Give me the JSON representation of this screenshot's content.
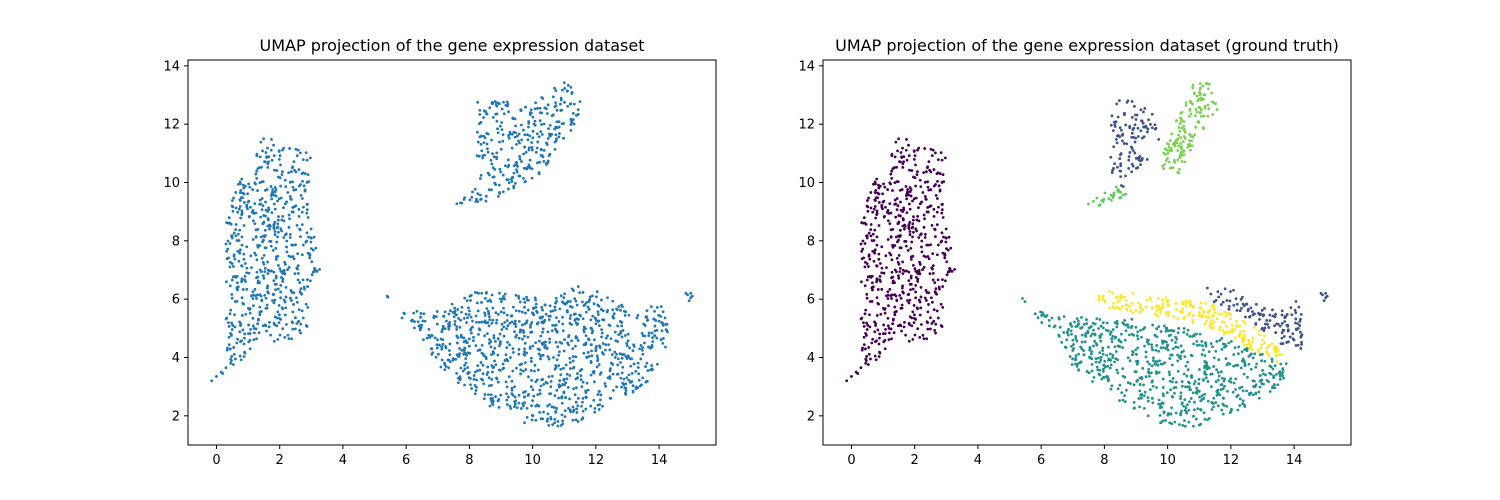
{
  "chart_data": [
    {
      "type": "scatter",
      "title": "UMAP projection of the gene expression dataset",
      "xlabel": "",
      "ylabel": "",
      "xlim": [
        -0.9,
        15.8
      ],
      "ylim": [
        1.0,
        14.2
      ],
      "xticks": [
        0,
        2,
        4,
        6,
        8,
        10,
        12,
        14
      ],
      "yticks": [
        2,
        4,
        6,
        8,
        10,
        12,
        14
      ],
      "grid": false,
      "legend": "none",
      "color": "#1f77b4",
      "clusters": [
        {
          "name": "left_band",
          "poly": [
            [
              -0.2,
              3.1
            ],
            [
              0.3,
              3.8
            ],
            [
              0.3,
              8.5
            ],
            [
              0.5,
              10.1
            ],
            [
              1.2,
              10.3
            ],
            [
              1.3,
              11.6
            ],
            [
              2.4,
              11.3
            ],
            [
              3.0,
              11.0
            ],
            [
              2.9,
              9.5
            ],
            [
              3.3,
              7.0
            ],
            [
              2.8,
              6.2
            ],
            [
              3.0,
              5.1
            ],
            [
              2.4,
              4.6
            ],
            [
              1.3,
              4.4
            ],
            [
              0.9,
              3.9
            ],
            [
              -0.2,
              3.1
            ]
          ],
          "n": 600,
          "extra": [
            [
              -0.15,
              3.2
            ],
            [
              0.0,
              3.35
            ],
            [
              0.15,
              3.5
            ],
            [
              0.3,
              3.65
            ],
            [
              0.45,
              3.8
            ],
            [
              0.6,
              3.95
            ],
            [
              0.75,
              4.05
            ],
            [
              0.9,
              4.15
            ]
          ]
        },
        {
          "name": "top_cluster",
          "poly": [
            [
              7.4,
              9.2
            ],
            [
              8.3,
              10.0
            ],
            [
              8.2,
              11.5
            ],
            [
              8.2,
              12.8
            ],
            [
              9.2,
              12.8
            ],
            [
              9.9,
              12.6
            ],
            [
              10.8,
              13.4
            ],
            [
              11.2,
              13.5
            ],
            [
              11.6,
              12.7
            ],
            [
              11.4,
              12.0
            ],
            [
              10.8,
              11.3
            ],
            [
              10.3,
              10.3
            ],
            [
              9.6,
              9.9
            ],
            [
              8.9,
              9.5
            ],
            [
              8.4,
              9.3
            ],
            [
              7.4,
              9.2
            ]
          ],
          "n": 300,
          "extra": []
        },
        {
          "name": "bottom_cluster",
          "poly": [
            [
              5.1,
              6.5
            ],
            [
              5.8,
              5.6
            ],
            [
              7.2,
              5.7
            ],
            [
              8.0,
              6.3
            ],
            [
              9.0,
              6.2
            ],
            [
              10.6,
              6.0
            ],
            [
              11.2,
              6.5
            ],
            [
              12.0,
              6.3
            ],
            [
              13.5,
              5.5
            ],
            [
              14.0,
              6.0
            ],
            [
              14.3,
              5.0
            ],
            [
              14.2,
              4.0
            ],
            [
              13.5,
              3.0
            ],
            [
              12.3,
              2.2
            ],
            [
              11.0,
              1.6
            ],
            [
              9.8,
              1.7
            ],
            [
              8.5,
              2.4
            ],
            [
              7.0,
              3.7
            ],
            [
              6.5,
              4.7
            ],
            [
              5.8,
              5.4
            ],
            [
              5.1,
              6.5
            ]
          ],
          "n": 1000,
          "extra": [
            [
              14.9,
              6.15
            ],
            [
              15.0,
              6.05
            ],
            [
              14.95,
              5.95
            ],
            [
              15.05,
              6.1
            ],
            [
              14.85,
              6.2
            ],
            [
              15.0,
              6.2
            ]
          ]
        }
      ]
    },
    {
      "type": "scatter",
      "title": "UMAP projection of the gene expression dataset (ground truth)",
      "xlabel": "",
      "ylabel": "",
      "xlim": [
        -0.9,
        15.8
      ],
      "ylim": [
        1.0,
        14.2
      ],
      "xticks": [
        0,
        2,
        4,
        6,
        8,
        10,
        12,
        14
      ],
      "yticks": [
        2,
        4,
        6,
        8,
        10,
        12,
        14
      ],
      "grid": false,
      "legend": "none",
      "colormap": "viridis",
      "class_colors": [
        "#440154",
        "#3b528b",
        "#21918c",
        "#5ec962",
        "#7ad151",
        "#fde725"
      ],
      "groups": [
        {
          "class": 0,
          "cluster": "left_band",
          "all": true
        },
        {
          "class": 1,
          "poly": [
            [
              8.2,
              10.0
            ],
            [
              8.2,
              12.9
            ],
            [
              9.4,
              12.7
            ],
            [
              9.8,
              11.5
            ],
            [
              9.2,
              10.5
            ],
            [
              8.6,
              9.8
            ]
          ],
          "n": 110
        },
        {
          "class": 3,
          "poly": [
            [
              7.4,
              9.2
            ],
            [
              8.3,
              9.9
            ],
            [
              8.8,
              9.6
            ],
            [
              8.0,
              9.2
            ]
          ],
          "n": 25
        },
        {
          "class": 4,
          "poly": [
            [
              9.7,
              10.5
            ],
            [
              10.2,
              12.0
            ],
            [
              10.8,
              13.4
            ],
            [
              11.3,
              13.5
            ],
            [
              11.6,
              12.5
            ],
            [
              10.9,
              11.5
            ],
            [
              10.4,
              10.3
            ]
          ],
          "n": 150
        },
        {
          "class": 5,
          "poly": [
            [
              7.6,
              6.0
            ],
            [
              8.2,
              6.3
            ],
            [
              10.5,
              6.0
            ],
            [
              11.5,
              5.8
            ],
            [
              12.8,
              5.0
            ],
            [
              13.7,
              4.2
            ],
            [
              13.5,
              3.8
            ],
            [
              12.4,
              4.4
            ],
            [
              11.2,
              5.1
            ],
            [
              9.8,
              5.4
            ],
            [
              8.3,
              5.6
            ],
            [
              7.6,
              6.0
            ]
          ],
          "n": 230
        },
        {
          "class": 1,
          "poly": [
            [
              11.2,
              6.5
            ],
            [
              12.2,
              6.3
            ],
            [
              13.4,
              5.6
            ],
            [
              14.2,
              6.0
            ],
            [
              14.3,
              4.2
            ],
            [
              13.8,
              4.3
            ],
            [
              12.9,
              5.0
            ],
            [
              12.0,
              5.6
            ],
            [
              11.2,
              6.0
            ]
          ],
          "n": 120,
          "extra": [
            [
              14.9,
              6.15
            ],
            [
              15.0,
              6.05
            ],
            [
              14.95,
              5.95
            ],
            [
              15.05,
              6.1
            ],
            [
              14.85,
              6.2
            ],
            [
              15.0,
              6.2
            ]
          ]
        },
        {
          "class": 2,
          "poly": [
            [
              5.1,
              6.5
            ],
            [
              5.8,
              5.6
            ],
            [
              7.0,
              5.4
            ],
            [
              8.5,
              5.4
            ],
            [
              10.5,
              5.0
            ],
            [
              12.0,
              4.6
            ],
            [
              13.3,
              4.0
            ],
            [
              14.0,
              3.8
            ],
            [
              13.5,
              3.0
            ],
            [
              12.3,
              2.2
            ],
            [
              11.0,
              1.6
            ],
            [
              9.8,
              1.7
            ],
            [
              8.5,
              2.4
            ],
            [
              7.0,
              3.7
            ],
            [
              6.5,
              4.7
            ],
            [
              5.8,
              5.4
            ],
            [
              5.1,
              6.5
            ]
          ],
          "n": 700
        }
      ]
    }
  ]
}
